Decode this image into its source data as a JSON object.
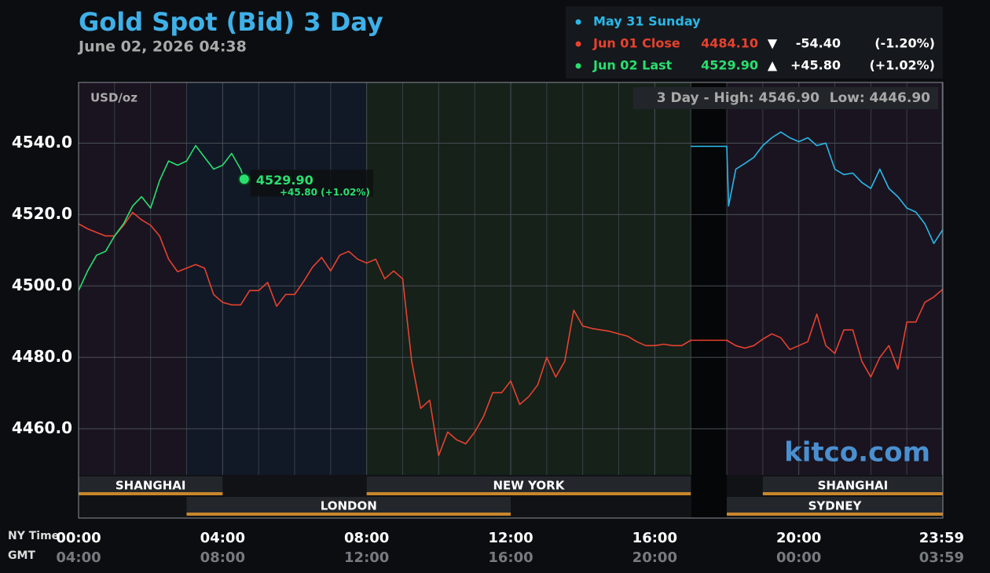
{
  "chart_data": {
    "type": "line",
    "title": "Gold Spot (Bid) 3 Day",
    "subtitle": "June 02, 2026 04:38",
    "y_unit": "USD/oz",
    "range_high": "3 Day - High: 4546.90",
    "range_low": "Low: 4446.90",
    "watermark": "kitco.com",
    "x_row_label": "NY Time",
    "x2_row_label": "GMT",
    "xlim": [
      0,
      24
    ],
    "ylim": [
      4435,
      4557
    ],
    "yticks": [
      {
        "value": 4460,
        "label": "4460.0"
      },
      {
        "value": 4480,
        "label": "4480.0"
      },
      {
        "value": 4500,
        "label": "4500.0"
      },
      {
        "value": 4520,
        "label": "4520.0"
      },
      {
        "value": 4540,
        "label": "4540.0"
      }
    ],
    "xticks": [
      {
        "value": 0,
        "label": "00:00"
      },
      {
        "value": 4,
        "label": "04:00"
      },
      {
        "value": 8,
        "label": "08:00"
      },
      {
        "value": 12,
        "label": "12:00"
      },
      {
        "value": 16,
        "label": "16:00"
      },
      {
        "value": 20,
        "label": "20:00"
      },
      {
        "value": 23.98,
        "label": "23:59"
      }
    ],
    "x2_labels": [
      "04:00",
      "08:00",
      "12:00",
      "16:00",
      "20:00",
      "00:00",
      "03:59"
    ],
    "xgrid": [
      1,
      2,
      3,
      5,
      6,
      7,
      9,
      10,
      11,
      13,
      14,
      15,
      17,
      18,
      19,
      21,
      22,
      23
    ],
    "grid": true,
    "sessions_top": [
      {
        "name": "SHANGHAI",
        "start": 0,
        "end": 4
      },
      {
        "name": "NEW YORK",
        "start": 8,
        "end": 17
      },
      {
        "name": "SHANGHAI",
        "start": 19,
        "end": 24
      }
    ],
    "sessions_bottom": [
      {
        "name": "LONDON",
        "start": 3,
        "end": 12
      },
      {
        "name": "SYDNEY",
        "start": 18,
        "end": 24
      }
    ],
    "series": [
      {
        "name": "May 31 Sunday",
        "color": "#29b8e8",
        "x": [
          17,
          18,
          18.05,
          18.25,
          18.5,
          18.75,
          19,
          19.25,
          19.5,
          19.75,
          20,
          20.25,
          20.5,
          20.75,
          21,
          21.25,
          21.5,
          21.75,
          22,
          22.25,
          22.5,
          22.75,
          23,
          23.25,
          23.5,
          23.75,
          24
        ],
        "values": [
          4539.1,
          4539.1,
          4522.4,
          4532.7,
          4534.3,
          4536,
          4539.3,
          4541.5,
          4543.1,
          4541.5,
          4540.4,
          4541.5,
          4539.3,
          4540,
          4532.7,
          4531.2,
          4531.6,
          4529,
          4527.3,
          4532.7,
          4527.3,
          4525,
          4521.8,
          4520.7,
          4517.4,
          4511.9,
          4515.8
        ]
      },
      {
        "name": "Jun 01 Close",
        "color": "#e8412e",
        "last": "4484.10",
        "arrow": "▼",
        "change": "-54.40",
        "pct": "(-1.20%)",
        "x": [
          0,
          0.25,
          0.5,
          0.75,
          1,
          1.25,
          1.5,
          1.75,
          2,
          2.25,
          2.5,
          2.75,
          3,
          3.25,
          3.5,
          3.75,
          4,
          4.25,
          4.5,
          4.75,
          5,
          5.25,
          5.5,
          5.75,
          6,
          6.25,
          6.5,
          6.75,
          7,
          7.25,
          7.5,
          7.75,
          8,
          8.25,
          8.5,
          8.75,
          9,
          9.25,
          9.5,
          9.75,
          10,
          10.25,
          10.5,
          10.75,
          11,
          11.25,
          11.5,
          11.75,
          12,
          12.25,
          12.5,
          12.75,
          13,
          13.25,
          13.5,
          13.75,
          14,
          14.25,
          14.5,
          14.75,
          15,
          15.25,
          15.5,
          15.75,
          16,
          16.25,
          16.5,
          16.75,
          17,
          17.25,
          17.5,
          17.75,
          18,
          18.25,
          18.5,
          18.75,
          19,
          19.25,
          19.5,
          19.75,
          20,
          20.25,
          20.5,
          20.75,
          21,
          21.25,
          21.5,
          21.75,
          22,
          22.25,
          22.5,
          22.75,
          23,
          23.25,
          23.5,
          23.75,
          24
        ],
        "values": [
          4517.4,
          4516,
          4515,
          4514,
          4514,
          4517,
          4520.6,
          4518.5,
          4517,
          4514,
          4507.5,
          4504,
          4505,
          4506,
          4505,
          4497.6,
          4495.4,
          4494.7,
          4494.7,
          4498.7,
          4498.7,
          4501,
          4494.3,
          4497.6,
          4497.6,
          4501.3,
          4505.3,
          4508,
          4504.2,
          4508.6,
          4509.7,
          4507.5,
          4506.4,
          4507.5,
          4502,
          4504.2,
          4502,
          4478.9,
          4465.7,
          4468,
          4452.5,
          4459.1,
          4456.9,
          4455.8,
          4459.1,
          4463.5,
          4470.1,
          4470.1,
          4473.4,
          4466.8,
          4469,
          4472.3,
          4480,
          4474.5,
          4478.9,
          4493.2,
          4488.8,
          4488.1,
          4487.7,
          4487.3,
          4486.6,
          4485.9,
          4484.4,
          4483.3,
          4483.3,
          4483.7,
          4483.3,
          4483.3,
          4484.8,
          4484.8,
          4484.8,
          4484.8,
          4484.8,
          4483.3,
          4482.6,
          4483.3,
          4485.1,
          4486.6,
          4485.5,
          4482.2,
          4483.3,
          4484.4,
          4492.1,
          4483.3,
          4481.1,
          4487.7,
          4487.7,
          4478.9,
          4474.5,
          4480,
          4483.3,
          4476.7,
          4489.9,
          4489.9,
          4495.4,
          4496.9,
          4499.1
        ]
      },
      {
        "name": "Jun 02 Last",
        "color": "#28e070",
        "last": "4529.90",
        "arrow": "▲",
        "change": "+45.80",
        "pct": "(+1.02%)",
        "x": [
          0,
          0.25,
          0.5,
          0.75,
          1,
          1.25,
          1.5,
          1.75,
          2,
          2.25,
          2.5,
          2.75,
          3,
          3.25,
          3.5,
          3.75,
          4,
          4.25,
          4.5,
          4.6
        ],
        "values": [
          4498.7,
          4504.2,
          4508.6,
          4509.7,
          4514,
          4517.4,
          4522.4,
          4525,
          4521.8,
          4529.5,
          4535,
          4533.8,
          4535,
          4539.3,
          4536,
          4532.7,
          4533.8,
          4537.1,
          4532.7,
          4529.9
        ]
      }
    ],
    "annotation": {
      "value": "4529.90",
      "change": "+45.80 (+1.02%)"
    }
  }
}
